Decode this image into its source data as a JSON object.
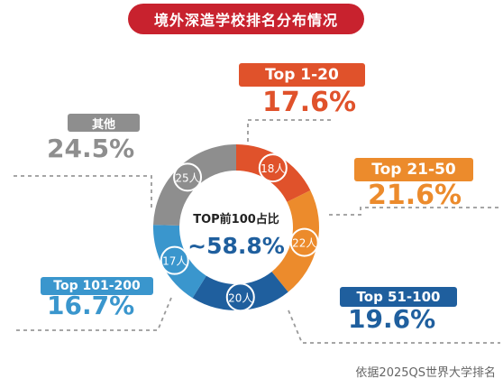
{
  "title": "境外深造学校排名分布情况",
  "source_note": "依据2025QS世界大学排名",
  "center": {
    "label": "TOP前100占比",
    "value": "~58.8%"
  },
  "chart_data": {
    "type": "pie",
    "title": "境外深造学校排名分布情况",
    "center_label": "TOP前100占比",
    "center_value": "~58.8%",
    "slices": [
      {
        "name": "Top 1-20",
        "count": 18,
        "count_label": "18人",
        "percent": 17.6,
        "percent_label": "17.6%",
        "color": "#e0522b"
      },
      {
        "name": "Top 21-50",
        "count": 22,
        "count_label": "22人",
        "percent": 21.6,
        "percent_label": "21.6%",
        "color": "#ec8b2c"
      },
      {
        "name": "Top 51-100",
        "count": 20,
        "count_label": "20人",
        "percent": 19.6,
        "percent_label": "19.6%",
        "color": "#1f5f9e"
      },
      {
        "name": "Top 101-200",
        "count": 17,
        "count_label": "17人",
        "percent": 16.7,
        "percent_label": "16.7%",
        "color": "#3a96cd"
      },
      {
        "name": "其他",
        "count": 25,
        "count_label": "25人",
        "percent": 24.5,
        "percent_label": "24.5%",
        "color": "#8e8e8e"
      }
    ]
  }
}
